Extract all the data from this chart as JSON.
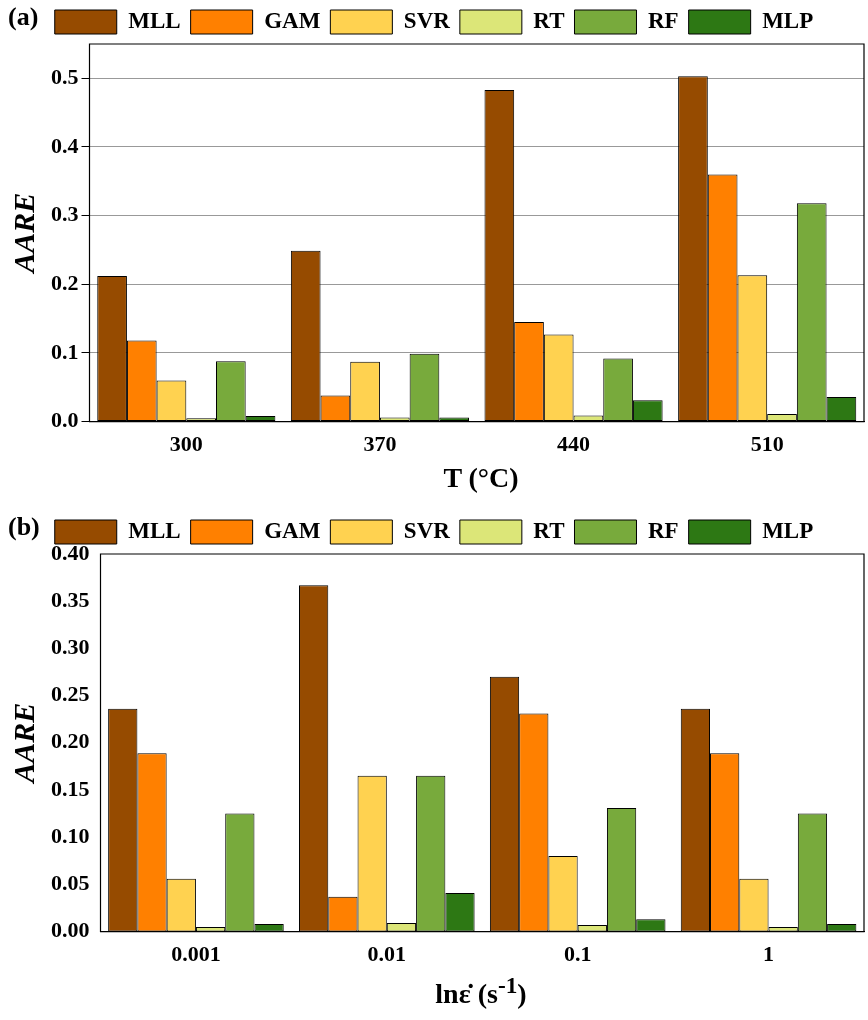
{
  "chart_data": [
    {
      "type": "bar",
      "title": "(a)",
      "xlabel": "T (°C)",
      "ylabel": "AARE",
      "categories": [
        "300",
        "370",
        "440",
        "510"
      ],
      "series": [
        {
          "name": "MLL",
          "color": "#964b00",
          "values": [
            0.212,
            0.249,
            0.483,
            0.503
          ]
        },
        {
          "name": "GAM",
          "color": "#ff8000",
          "values": [
            0.118,
            0.038,
            0.145,
            0.36
          ]
        },
        {
          "name": "SVR",
          "color": "#ffd250",
          "values": [
            0.06,
            0.087,
            0.127,
            0.213
          ]
        },
        {
          "name": "RT",
          "color": "#dce678",
          "values": [
            0.005,
            0.006,
            0.009,
            0.011
          ]
        },
        {
          "name": "RF",
          "color": "#78aa3c",
          "values": [
            0.088,
            0.099,
            0.092,
            0.318
          ]
        },
        {
          "name": "MLP",
          "color": "#2d7814",
          "values": [
            0.008,
            0.006,
            0.031,
            0.036
          ]
        }
      ],
      "ylim": [
        0,
        0.55
      ],
      "yticks": [
        {
          "value": 0,
          "label": "0.0"
        },
        0.1,
        0.2,
        0.3,
        0.4,
        0.5
      ],
      "grid": "y",
      "legend": "top"
    },
    {
      "type": "bar",
      "title": "(b)",
      "xlabel": "lnε̇ (s$^{-1}$)",
      "ylabel": "AARE",
      "categories": [
        "0.001",
        "0.01",
        "0.1",
        "1"
      ],
      "series": [
        {
          "name": "MLL",
          "color": "#964b00",
          "values": [
            0.236,
            0.367,
            0.27,
            0.236
          ]
        },
        {
          "name": "GAM",
          "color": "#ff8000",
          "values": [
            0.189,
            0.037,
            0.231,
            0.189
          ]
        },
        {
          "name": "SVR",
          "color": "#ffd250",
          "values": [
            0.056,
            0.165,
            0.08,
            0.056
          ]
        },
        {
          "name": "RT",
          "color": "#dce678",
          "values": [
            0.005,
            0.009,
            0.007,
            0.005
          ]
        },
        {
          "name": "RF",
          "color": "#78aa3c",
          "values": [
            0.125,
            0.165,
            0.131,
            0.125
          ]
        },
        {
          "name": "MLP",
          "color": "#2d7814",
          "values": [
            0.008,
            0.041,
            0.013,
            0.008
          ]
        }
      ],
      "ylim": [
        0,
        0.4
      ],
      "yticks": [
        {
          "value": 0,
          "label": "0.00"
        },
        {
          "value": 0.05,
          "label": "0.05"
        },
        {
          "value": 0.1,
          "label": "0.10"
        },
        {
          "value": 0.15,
          "label": "0.15"
        },
        {
          "value": 0.2,
          "label": "0.20"
        },
        {
          "value": 0.25,
          "label": "0.25"
        },
        {
          "value": 0.3,
          "label": "0.30"
        },
        {
          "value": 0.35,
          "label": "0.35"
        },
        {
          "value": 0.4,
          "label": "0.40"
        }
      ],
      "legend": "top"
    }
  ]
}
